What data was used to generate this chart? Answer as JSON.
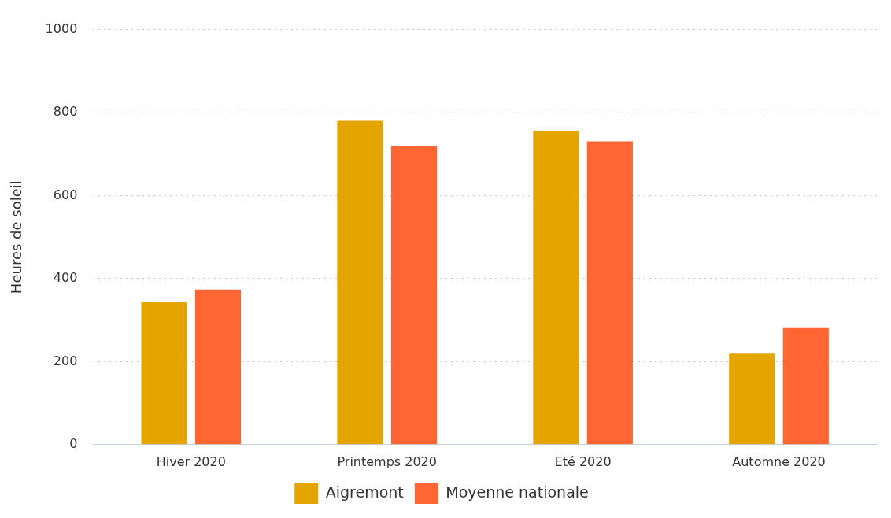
{
  "chart_data": {
    "type": "bar",
    "ylabel": "Heures de soleil",
    "categories": [
      "Hiver 2020",
      "Printemps 2020",
      "Eté 2020",
      "Automne 2020"
    ],
    "series": [
      {
        "name": "Aigremont",
        "color": "#e5a500",
        "values": [
          345,
          780,
          756,
          219
        ]
      },
      {
        "name": "Moyenne nationale",
        "color": "#ff6633",
        "values": [
          374,
          719,
          731,
          281
        ]
      }
    ],
    "ylim": [
      0,
      1000
    ],
    "yticks": [
      0,
      200,
      400,
      600,
      800,
      1000
    ],
    "grid": "y",
    "legend": "bottom"
  }
}
